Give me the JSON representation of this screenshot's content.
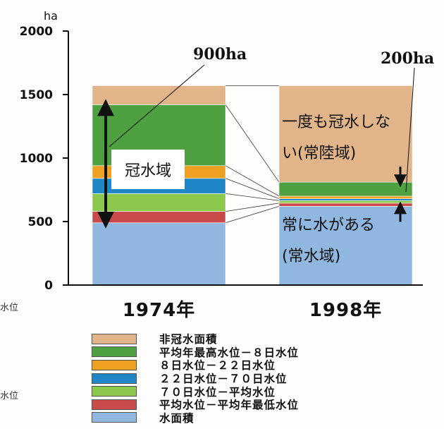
{
  "chart_data": {
    "type": "bar",
    "stacked": true,
    "unit": "ha",
    "ylim": [
      0,
      2000
    ],
    "yticks": [
      "0",
      "500",
      "1000",
      "1500",
      "2000"
    ],
    "categories": [
      "1974年",
      "1998年"
    ],
    "series": [
      {
        "name": "水面積",
        "color": "#8fb7e0",
        "values": [
          490,
          620
        ]
      },
      {
        "name": "平均水位－平均年最低水位",
        "color": "#c94a4a",
        "values": [
          90,
          25
        ]
      },
      {
        "name": "７０日水位－平均水位",
        "color": "#8cc84b",
        "values": [
          140,
          20
        ]
      },
      {
        "name": "２２日水位－７０日水位",
        "color": "#1f86c8",
        "values": [
          120,
          15
        ]
      },
      {
        "name": "８日水位－２２日水位",
        "color": "#eea020",
        "values": [
          100,
          20
        ]
      },
      {
        "name": "平均年最高水位－８日水位",
        "color": "#4ea040",
        "values": [
          480,
          110
        ]
      },
      {
        "name": "非冠水面積",
        "color": "#e2b48a",
        "values": [
          150,
          760
        ]
      }
    ],
    "legend_order": [
      "非冠水面積",
      "平均年最高水位－８日水位",
      "８日水位－２２日水位",
      "２２日水位－７０日水位",
      "７０日水位－平均水位",
      "平均水位－平均年最低水位",
      "水面積"
    ],
    "annotations": {
      "total_1974": "900ha",
      "total_1998": "200ha",
      "flood_area": "冠水域",
      "never_flooded_line1": "一度も冠水しな",
      "never_flooded_line2": "い(常陸域)",
      "always_water_line1": "常に水がある",
      "always_water_line2": "(常水域)"
    },
    "side_text": [
      "水位",
      "水位"
    ],
    "legend": "bottom",
    "grid": false
  }
}
